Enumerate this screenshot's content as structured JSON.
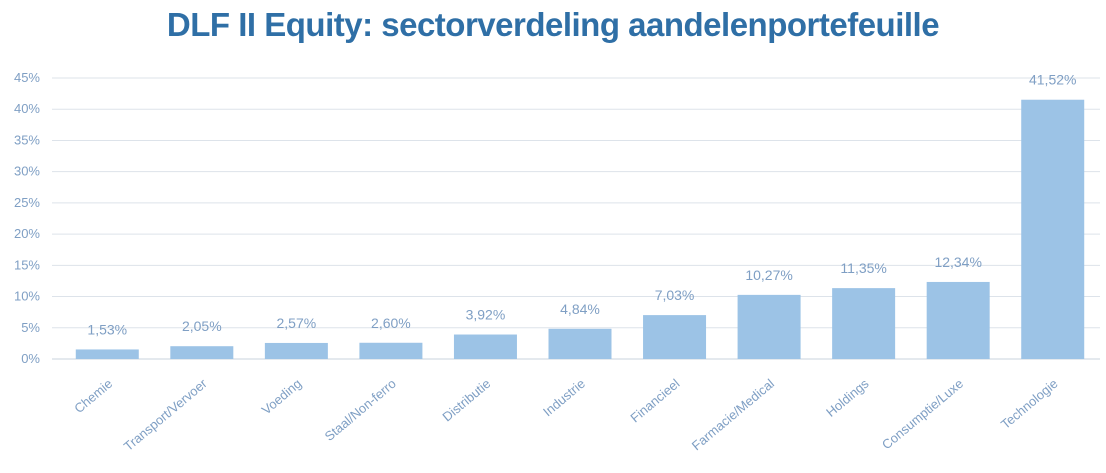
{
  "chart_data": {
    "type": "bar",
    "title": "DLF II Equity: sectorverdeling aandelenportefeuille",
    "categories": [
      "Chemie",
      "Transport/Vervoer",
      "Voeding",
      "Staal/Non-ferro",
      "Distributie",
      "Industrie",
      "Financieel",
      "Farmacie/Medical",
      "Holdings",
      "Consumptie/Luxe",
      "Technologie"
    ],
    "values": [
      1.53,
      2.05,
      2.57,
      2.6,
      3.92,
      4.84,
      7.03,
      10.27,
      11.35,
      12.34,
      41.52
    ],
    "value_labels": [
      "1,53%",
      "2,05%",
      "2,57%",
      "2,60%",
      "3,92%",
      "4,84%",
      "7,03%",
      "10,27%",
      "11,35%",
      "12,34%",
      "41,52%"
    ],
    "y_ticks": [
      0,
      5,
      10,
      15,
      20,
      25,
      30,
      35,
      40,
      45
    ],
    "y_tick_labels": [
      "0%",
      "5%",
      "10%",
      "15%",
      "20%",
      "25%",
      "30%",
      "35%",
      "40%",
      "45%"
    ],
    "ylim": [
      0,
      45
    ],
    "xlabel": "",
    "ylabel": "",
    "grid": true,
    "legend": "none",
    "colors": {
      "bar": "#9cc3e6",
      "title": "#2f6fa6",
      "text": "#7f9fc4",
      "grid": "#dde3ea"
    }
  }
}
